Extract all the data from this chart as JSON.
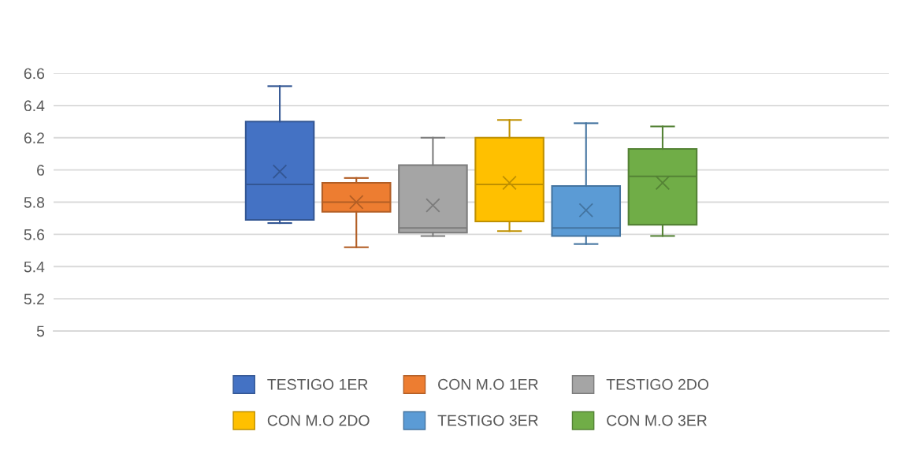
{
  "chart_data": {
    "type": "box",
    "categories": [
      null
    ],
    "ylim": [
      5,
      6.6
    ],
    "yticks": [
      5,
      5.2,
      5.4,
      5.6,
      5.8,
      6,
      6.2,
      6.4,
      6.6
    ],
    "grid": "y",
    "legend": "bottom",
    "series": [
      {
        "name": "TESTIGO 1ER",
        "color": "#4472c4",
        "boxes": [
          {
            "low": 5.67,
            "q1": 5.69,
            "median": 5.91,
            "q3": 6.3,
            "high": 6.52,
            "mean": 5.99
          }
        ]
      },
      {
        "name": "CON M.O 1ER",
        "color": "#ed7d31",
        "boxes": [
          {
            "low": 5.52,
            "q1": 5.74,
            "median": 5.8,
            "q3": 5.92,
            "high": 5.95,
            "mean": 5.8
          }
        ]
      },
      {
        "name": "TESTIGO 2DO",
        "color": "#a5a5a5",
        "boxes": [
          {
            "low": 5.59,
            "q1": 5.61,
            "median": 5.64,
            "q3": 6.03,
            "high": 6.2,
            "mean": 5.78
          }
        ]
      },
      {
        "name": "CON M.O 2DO",
        "color": "#ffc000",
        "boxes": [
          {
            "low": 5.62,
            "q1": 5.68,
            "median": 5.91,
            "q3": 6.2,
            "high": 6.31,
            "mean": 5.92
          }
        ]
      },
      {
        "name": "TESTIGO 3ER",
        "color": "#5b9bd5",
        "boxes": [
          {
            "low": 5.54,
            "q1": 5.59,
            "median": 5.64,
            "q3": 5.9,
            "high": 6.29,
            "mean": 5.75
          }
        ]
      },
      {
        "name": "CON M.O 3ER",
        "color": "#70ad47",
        "boxes": [
          {
            "low": 5.59,
            "q1": 5.66,
            "median": 5.96,
            "q3": 6.13,
            "high": 6.27,
            "mean": 5.92
          }
        ]
      }
    ]
  }
}
